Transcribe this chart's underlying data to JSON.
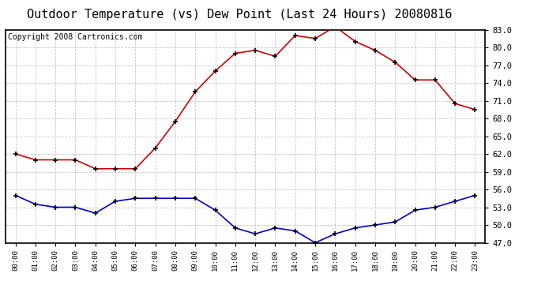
{
  "title": "Outdoor Temperature (vs) Dew Point (Last 24 Hours) 20080816",
  "copyright": "Copyright 2008 Cartronics.com",
  "hours": [
    "00:00",
    "01:00",
    "02:00",
    "03:00",
    "04:00",
    "05:00",
    "06:00",
    "07:00",
    "08:00",
    "09:00",
    "10:00",
    "11:00",
    "12:00",
    "13:00",
    "14:00",
    "15:00",
    "16:00",
    "17:00",
    "18:00",
    "19:00",
    "20:00",
    "21:00",
    "22:00",
    "23:00"
  ],
  "temperature": [
    62.0,
    61.0,
    61.0,
    61.0,
    59.5,
    59.5,
    59.5,
    63.0,
    67.5,
    72.5,
    76.0,
    79.0,
    79.5,
    78.5,
    82.0,
    81.5,
    83.5,
    81.0,
    79.5,
    77.5,
    74.5,
    74.5,
    70.5,
    69.5
  ],
  "dewpoint": [
    55.0,
    53.5,
    53.0,
    53.0,
    52.0,
    54.0,
    54.5,
    54.5,
    54.5,
    54.5,
    52.5,
    49.5,
    48.5,
    49.5,
    49.0,
    47.0,
    48.5,
    49.5,
    50.0,
    50.5,
    52.5,
    53.0,
    54.0,
    55.0
  ],
  "temp_color": "#cc0000",
  "dew_color": "#0000cc",
  "ylim_min": 47.0,
  "ylim_max": 83.0,
  "yticks": [
    47.0,
    50.0,
    53.0,
    56.0,
    59.0,
    62.0,
    65.0,
    68.0,
    71.0,
    74.0,
    77.0,
    80.0,
    83.0
  ],
  "bg_color": "#ffffff",
  "plot_bg": "#ffffff",
  "grid_color": "#c8c8c8",
  "marker": "+",
  "marker_color": "#000000",
  "marker_size": 5,
  "line_width": 1.2,
  "title_fontsize": 11,
  "copyright_fontsize": 7
}
